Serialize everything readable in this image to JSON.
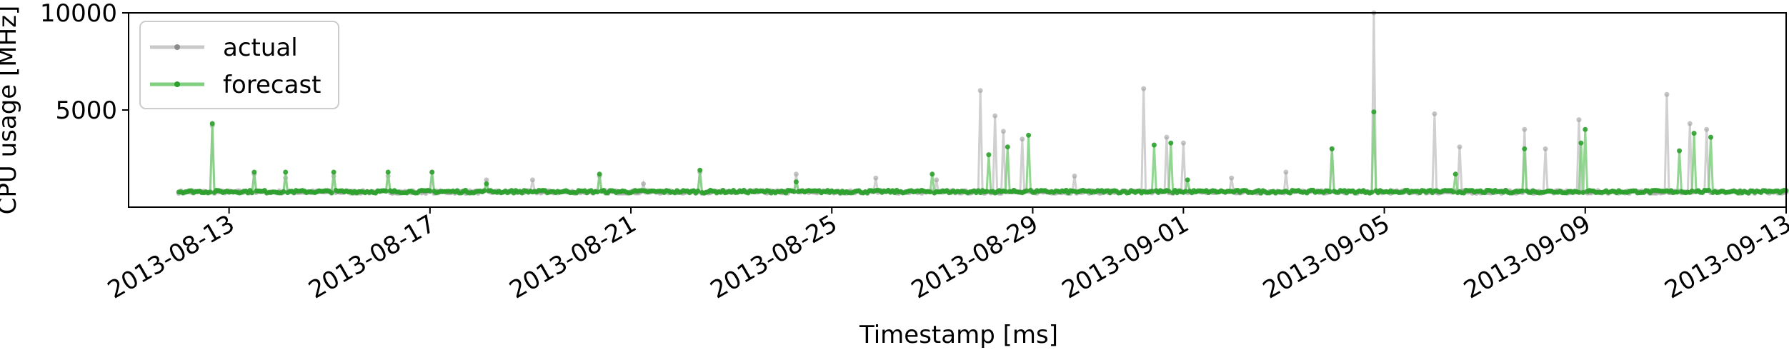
{
  "chart_data": {
    "type": "line",
    "xlabel": "Timestamp [ms]",
    "ylabel": "CPU usage [MHz]",
    "x_start": "2013-08-12",
    "x_end": "2013-09-13",
    "xlim": [
      "2013-08-11",
      "2013-09-13"
    ],
    "ylim": [
      0,
      10000
    ],
    "y_ticks": [
      5000,
      10000
    ],
    "y_tick_labels": [
      "5000",
      "10000"
    ],
    "x_ticks": [
      "2013-08-13",
      "2013-08-17",
      "2013-08-21",
      "2013-08-25",
      "2013-08-29",
      "2013-09-01",
      "2013-09-05",
      "2013-09-09",
      "2013-09-13"
    ],
    "x_tick_labels": [
      "2013-08-13",
      "2013-08-17",
      "2013-08-21",
      "2013-08-25",
      "2013-08-29",
      "2013-09-01",
      "2013-09-05",
      "2013-09-09",
      "2013-09-13"
    ],
    "legend": {
      "position": "upper-left",
      "entries": [
        "actual",
        "forecast"
      ]
    },
    "series": [
      {
        "name": "actual",
        "color": "#9e9e9e",
        "baseline": 780,
        "spikes": [
          [
            "2013-08-12T16:00",
            4200
          ],
          [
            "2013-08-13T12:00",
            1700
          ],
          [
            "2013-08-14T03:00",
            1500
          ],
          [
            "2013-08-15T02:00",
            1600
          ],
          [
            "2013-08-16T04:00",
            1600
          ],
          [
            "2013-08-17T01:00",
            1800
          ],
          [
            "2013-08-18T03:00",
            1400
          ],
          [
            "2013-08-19T01:00",
            1400
          ],
          [
            "2013-08-20T09:00",
            1600
          ],
          [
            "2013-08-21T06:00",
            1200
          ],
          [
            "2013-08-22T09:00",
            1800
          ],
          [
            "2013-08-24T07:00",
            1700
          ],
          [
            "2013-08-25T21:00",
            1500
          ],
          [
            "2013-08-27T02:00",
            1400
          ],
          [
            "2013-08-27T23:00",
            6000
          ],
          [
            "2013-08-28T06:00",
            4700
          ],
          [
            "2013-08-28T10:00",
            3900
          ],
          [
            "2013-08-28T19:00",
            3500
          ],
          [
            "2013-08-29T20:00",
            1600
          ],
          [
            "2013-08-31T05:00",
            6100
          ],
          [
            "2013-08-31T16:00",
            3600
          ],
          [
            "2013-09-01T00:00",
            3300
          ],
          [
            "2013-09-01T23:00",
            1500
          ],
          [
            "2013-09-03T01:00",
            1800
          ],
          [
            "2013-09-03T23:00",
            3000
          ],
          [
            "2013-09-04T19:00",
            10000
          ],
          [
            "2013-09-06T00:00",
            4800
          ],
          [
            "2013-09-06T12:00",
            3100
          ],
          [
            "2013-09-07T19:00",
            4000
          ],
          [
            "2013-09-08T05:00",
            3000
          ],
          [
            "2013-09-08T21:00",
            4500
          ],
          [
            "2013-09-10T15:00",
            5800
          ],
          [
            "2013-09-11T02:00",
            4300
          ],
          [
            "2013-09-11T10:00",
            4000
          ]
        ]
      },
      {
        "name": "forecast",
        "color": "#2ca02c",
        "baseline": 800,
        "spikes": [
          [
            "2013-08-12T16:00",
            4300
          ],
          [
            "2013-08-13T12:00",
            1800
          ],
          [
            "2013-08-14T03:00",
            1800
          ],
          [
            "2013-08-15T02:00",
            1800
          ],
          [
            "2013-08-16T04:00",
            1800
          ],
          [
            "2013-08-17T01:00",
            1800
          ],
          [
            "2013-08-18T03:00",
            1200
          ],
          [
            "2013-08-20T09:00",
            1700
          ],
          [
            "2013-08-22T09:00",
            1900
          ],
          [
            "2013-08-24T07:00",
            1300
          ],
          [
            "2013-08-27T00:00",
            1700
          ],
          [
            "2013-08-28T03:00",
            2700
          ],
          [
            "2013-08-28T12:00",
            3100
          ],
          [
            "2013-08-28T22:00",
            3700
          ],
          [
            "2013-08-31T10:00",
            3200
          ],
          [
            "2013-08-31T18:00",
            3300
          ],
          [
            "2013-09-01T02:00",
            1400
          ],
          [
            "2013-09-03T23:00",
            3000
          ],
          [
            "2013-09-04T19:00",
            4900
          ],
          [
            "2013-09-06T10:00",
            1700
          ],
          [
            "2013-09-07T19:00",
            3000
          ],
          [
            "2013-09-08T22:00",
            3300
          ],
          [
            "2013-09-09T00:00",
            4000
          ],
          [
            "2013-09-10T21:00",
            2900
          ],
          [
            "2013-09-11T04:00",
            3800
          ],
          [
            "2013-09-11T12:00",
            3600
          ]
        ]
      }
    ]
  }
}
